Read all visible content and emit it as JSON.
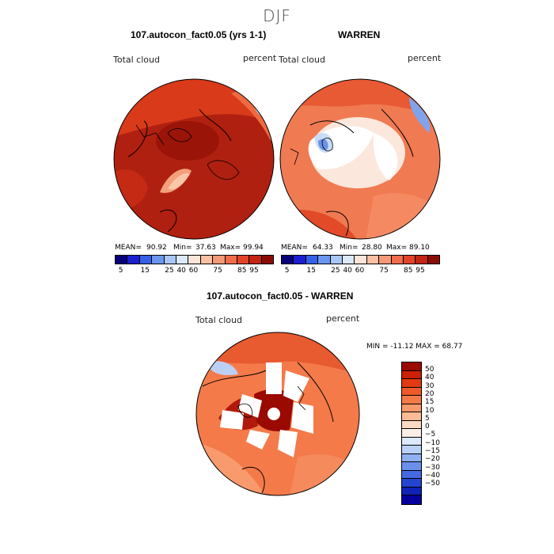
{
  "title": "DJF",
  "panels": [
    {
      "title": "107.autocon_fact0.05 (yrs 1-1)",
      "variable": "Total cloud",
      "units": "percent",
      "mean_label": "MEAN=",
      "mean": "90.92",
      "min_label": "Min=",
      "min": "37.63",
      "max_label": "Max=",
      "max": "99.94"
    },
    {
      "title": "WARREN",
      "variable": "Total cloud",
      "units": "percent",
      "mean_label": "MEAN=",
      "mean": "64.33",
      "min_label": "Min=",
      "min": "28.80",
      "max_label": "Max=",
      "max": "89.10"
    },
    {
      "title": "107.autocon_fact0.05 - WARREN",
      "variable": "Total cloud",
      "units": "percent",
      "minmax": "MIN = -11.12  MAX =  68.77"
    }
  ],
  "colorbar_top": {
    "colors": [
      "#08007a",
      "#1a1fd0",
      "#3560e8",
      "#6a96f0",
      "#a9c6f7",
      "#dce9fb",
      "#fde4d8",
      "#fbc0a4",
      "#f79876",
      "#f06c4c",
      "#e2442a",
      "#c42412",
      "#8a0d05"
    ],
    "labels": [
      "5",
      "15",
      "25",
      "40",
      "60",
      "75",
      "85",
      "95"
    ]
  },
  "colorbar_diff": {
    "colors": [
      "#9a0a00",
      "#cc1f04",
      "#e23a12",
      "#ee5a2a",
      "#f47a47",
      "#f89a6c",
      "#fbbb95",
      "#fcd9c2",
      "#fbeee6",
      "#dce8fb",
      "#b9d0f7",
      "#8fb1f2",
      "#6a90ec",
      "#4569e2",
      "#2444d2",
      "#1022b8",
      "#06009a"
    ],
    "labels": [
      "50",
      "40",
      "30",
      "20",
      "15",
      "10",
      "5",
      "0",
      "−5",
      "−10",
      "−15",
      "−20",
      "−30",
      "−40",
      "−50"
    ]
  }
}
